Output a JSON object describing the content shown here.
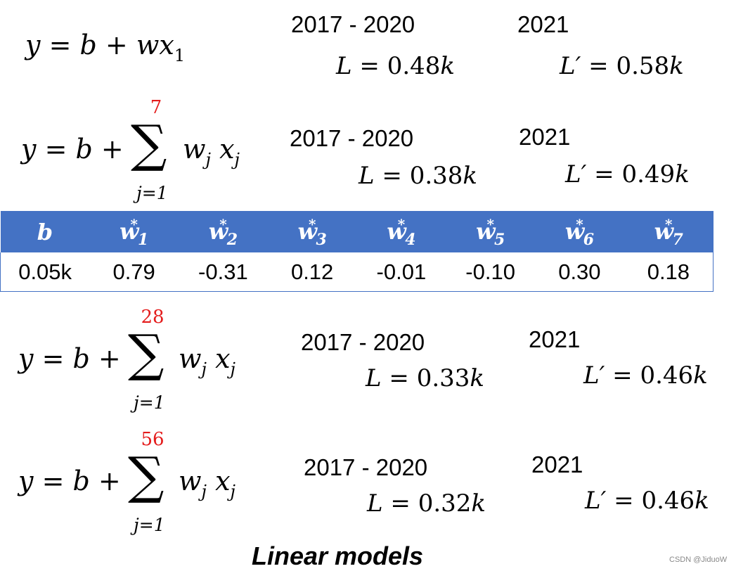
{
  "models": [
    {
      "equation": {
        "lhs": "y",
        "eq": "=",
        "b": "b",
        "plus": "+",
        "w": "w",
        "x": "x",
        "sub": "1",
        "type": "simple"
      },
      "train_period": "2017 - 2020",
      "test_period": "2021",
      "train_loss": {
        "symbol": "L",
        "eq": "=",
        "value": "0.48",
        "unit": "k"
      },
      "test_loss": {
        "symbol": "L′",
        "eq": "=",
        "value": "0.58",
        "unit": "k"
      }
    },
    {
      "equation": {
        "lhs": "y",
        "eq": "=",
        "b": "b",
        "plus": "+",
        "sum_upper": "7",
        "sum_lower": "j=1",
        "w": "w",
        "x": "x",
        "idx": "j",
        "type": "sum"
      },
      "train_period": "2017 - 2020",
      "test_period": "2021",
      "train_loss": {
        "symbol": "L",
        "eq": "=",
        "value": "0.38",
        "unit": "k"
      },
      "test_loss": {
        "symbol": "L′",
        "eq": "=",
        "value": "0.49",
        "unit": "k"
      }
    },
    {
      "equation": {
        "lhs": "y",
        "eq": "=",
        "b": "b",
        "plus": "+",
        "sum_upper": "28",
        "sum_lower": "j=1",
        "w": "w",
        "x": "x",
        "idx": "j",
        "type": "sum"
      },
      "train_period": "2017 - 2020",
      "test_period": "2021",
      "train_loss": {
        "symbol": "L",
        "eq": "=",
        "value": "0.33",
        "unit": "k"
      },
      "test_loss": {
        "symbol": "L′",
        "eq": "=",
        "value": "0.46",
        "unit": "k"
      }
    },
    {
      "equation": {
        "lhs": "y",
        "eq": "=",
        "b": "b",
        "plus": "+",
        "sum_upper": "56",
        "sum_lower": "j=1",
        "w": "w",
        "x": "x",
        "idx": "j",
        "type": "sum"
      },
      "train_period": "2017 - 2020",
      "test_period": "2021",
      "train_loss": {
        "symbol": "L",
        "eq": "=",
        "value": "0.32",
        "unit": "k"
      },
      "test_loss": {
        "symbol": "L′",
        "eq": "=",
        "value": "0.46",
        "unit": "k"
      }
    }
  ],
  "param_table": {
    "headers": [
      {
        "base": "b",
        "sub": "",
        "sup": ""
      },
      {
        "base": "w",
        "sub": "1",
        "sup": "*"
      },
      {
        "base": "w",
        "sub": "2",
        "sup": "*"
      },
      {
        "base": "w",
        "sub": "3",
        "sup": "*"
      },
      {
        "base": "w",
        "sub": "4",
        "sup": "*"
      },
      {
        "base": "w",
        "sub": "5",
        "sup": "*"
      },
      {
        "base": "w",
        "sub": "6",
        "sup": "*"
      },
      {
        "base": "w",
        "sub": "7",
        "sup": "*"
      }
    ],
    "values": [
      "0.05k",
      "0.79",
      "-0.31",
      "0.12",
      "-0.01",
      "-0.10",
      "0.30",
      "0.18"
    ],
    "header_color": "#4472c4"
  },
  "caption": "Linear models",
  "watermark": "CSDN @JiduoW",
  "colors": {
    "limit_red": "#e41c1c",
    "header_blue": "#4472c4"
  }
}
